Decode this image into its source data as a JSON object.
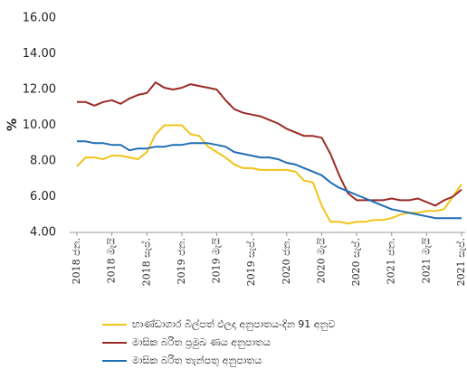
{
  "chart_data": {
    "type": "line",
    "y_label": "%",
    "categories": [
      "2018 ජන.",
      null,
      null,
      null,
      "2018 මැයි",
      null,
      null,
      null,
      "2018 සැප්.",
      null,
      null,
      null,
      "2019 ජන.",
      null,
      null,
      null,
      "2019 මැයි",
      null,
      null,
      null,
      "2019 සැප්.",
      null,
      null,
      null,
      "2020 ජන.",
      null,
      null,
      null,
      "2020 මැයි",
      null,
      null,
      null,
      "2020 සැප්.",
      null,
      null,
      null,
      "2021 ජන.",
      null,
      null,
      null,
      "2021 මැයි",
      null,
      null,
      null,
      "2021 සැප්."
    ],
    "series": [
      {
        "name": "භාණ්ඩාගාර බිල්පත් ඵලදා අනුපාතය-දින 91 අනුව",
        "color": "#f2c318",
        "values": [
          7.7,
          8.2,
          8.2,
          8.1,
          8.3,
          8.3,
          8.2,
          8.1,
          8.5,
          9.5,
          10.0,
          10.0,
          10.0,
          9.5,
          9.4,
          8.8,
          8.5,
          8.2,
          7.8,
          7.6,
          7.6,
          7.5,
          7.5,
          7.5,
          7.5,
          7.4,
          6.9,
          6.8,
          5.5,
          4.6,
          4.6,
          4.5,
          4.6,
          4.6,
          4.7,
          4.7,
          4.8,
          5.0,
          5.1,
          5.1,
          5.2,
          5.2,
          5.3,
          6.0,
          6.7
        ]
      },
      {
        "name": "මාසික බරිත ප්‍රමුඛ ණය අනුපාතය",
        "color": "#9b2b26",
        "values": [
          11.3,
          11.3,
          11.1,
          11.3,
          11.4,
          11.2,
          11.5,
          11.7,
          11.8,
          12.4,
          12.1,
          12.0,
          12.1,
          12.3,
          12.2,
          12.1,
          12.0,
          11.4,
          10.9,
          10.7,
          10.6,
          10.5,
          10.3,
          10.1,
          9.8,
          9.6,
          9.4,
          9.4,
          9.3,
          8.4,
          7.2,
          6.2,
          5.8,
          5.8,
          5.8,
          5.8,
          5.9,
          5.8,
          5.8,
          5.9,
          5.7,
          5.5,
          5.8,
          6.0,
          6.4
        ]
      },
      {
        "name": "මාසික බරිත තැන්පතු අනුපාතය",
        "color": "#1f6db3",
        "values": [
          9.1,
          9.1,
          9.0,
          9.0,
          8.9,
          8.9,
          8.6,
          8.7,
          8.7,
          8.8,
          8.8,
          8.9,
          8.9,
          9.0,
          9.0,
          9.0,
          8.9,
          8.8,
          8.5,
          8.4,
          8.3,
          8.2,
          8.2,
          8.1,
          7.9,
          7.8,
          7.6,
          7.4,
          7.2,
          6.8,
          6.5,
          6.3,
          6.1,
          5.9,
          5.7,
          5.5,
          5.3,
          5.2,
          5.1,
          5.0,
          4.9,
          4.8,
          4.8,
          4.8,
          4.8
        ]
      }
    ],
    "ylim": [
      4,
      16
    ],
    "yticks": [
      {
        "value": 4,
        "label": "4.00"
      },
      {
        "value": 6,
        "label": "6.00"
      },
      {
        "value": 8,
        "label": "8.00"
      },
      {
        "value": 10,
        "label": "10.00"
      },
      {
        "value": 12,
        "label": "12.00"
      },
      {
        "value": 14,
        "label": "14.00"
      },
      {
        "value": 16,
        "label": "16.00"
      }
    ],
    "grid": false
  }
}
